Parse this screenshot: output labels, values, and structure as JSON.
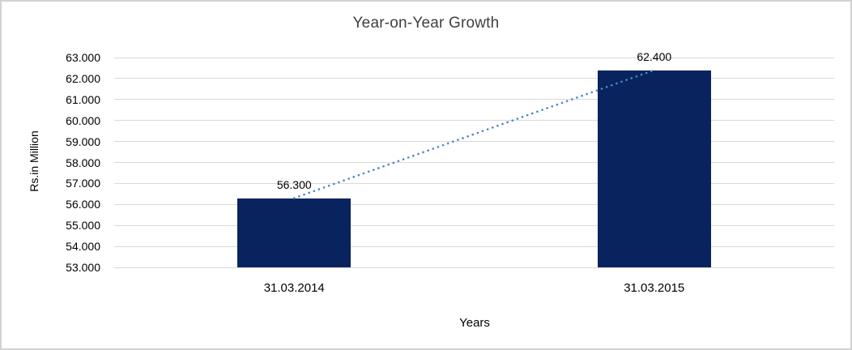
{
  "chart_data": {
    "type": "bar",
    "title": "Year-on-Year Growth",
    "xlabel": "Years",
    "ylabel": "Rs.in Million",
    "categories": [
      "31.03.2014",
      "31.03.2015"
    ],
    "values": [
      56.3,
      62.4
    ],
    "value_labels": [
      "56.300",
      "62.400"
    ],
    "ylim": [
      53,
      63
    ],
    "ytick_step": 1,
    "ytick_labels": [
      "63.000",
      "62.000",
      "61.000",
      "60.000",
      "59.000",
      "58.000",
      "57.000",
      "56.000",
      "55.000",
      "54.000",
      "53.000"
    ],
    "grid": true,
    "legend_position": "none",
    "trendline": {
      "type": "linear",
      "style": "dotted",
      "connects_values": [
        56.3,
        62.4
      ]
    },
    "colors": {
      "bar": "#08235E",
      "trendline": "#4E86C6",
      "gridline": "#D9D9D9",
      "text": "#000000",
      "title_text": "#404040",
      "frame_border": "#D2D2D2",
      "background": "#FFFFFF"
    }
  }
}
